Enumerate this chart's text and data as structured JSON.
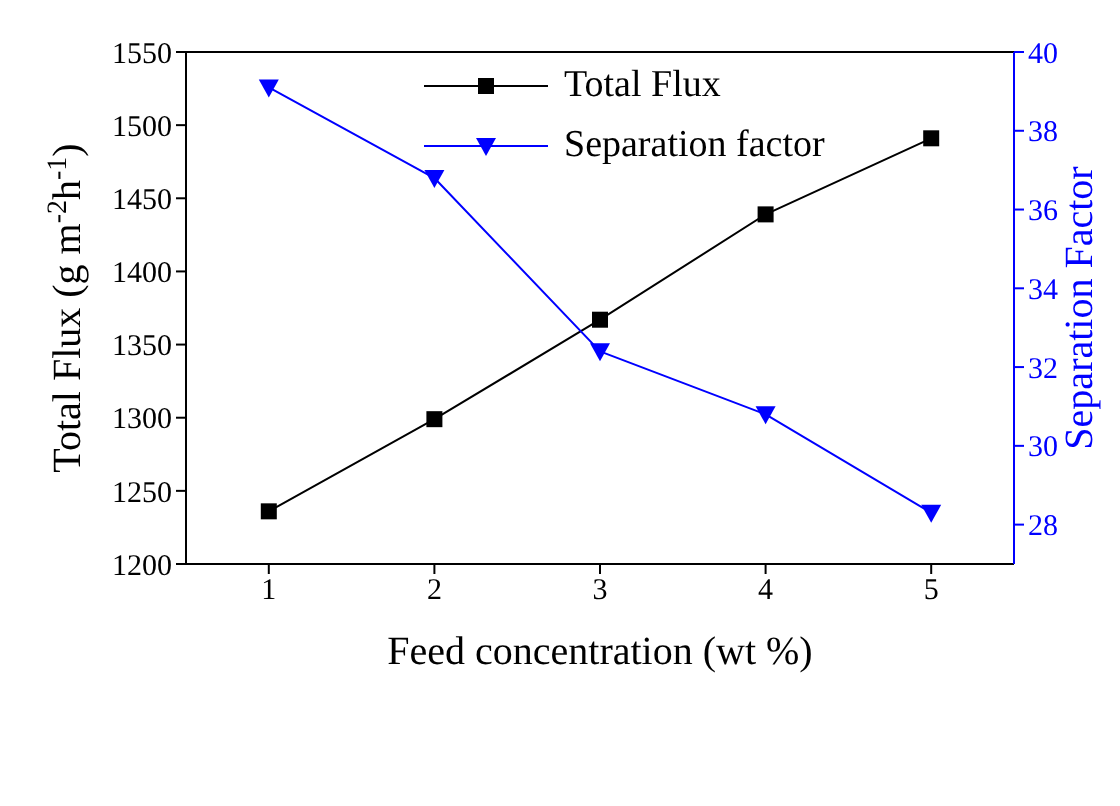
{
  "chart_data": {
    "type": "line",
    "xlabel": "Feed concentration (wt %)",
    "ylabel": "Total Flux (g m$^{-2}$h$^{-1}$)",
    "y2label": "Separation Factor",
    "x": [
      1,
      2,
      3,
      4,
      5
    ],
    "xlim": [
      0.5,
      5.5
    ],
    "xticks": [
      1,
      2,
      3,
      4,
      5
    ],
    "ylim": [
      1200,
      1550
    ],
    "yticks": [
      1200,
      1250,
      1300,
      1350,
      1400,
      1450,
      1500,
      1550
    ],
    "y2lim": [
      27,
      40
    ],
    "y2ticks": [
      28,
      30,
      32,
      34,
      36,
      38,
      40
    ],
    "legend": "top",
    "grid": false,
    "line_style": "solid",
    "series": [
      {
        "name": "Total Flux",
        "color": "#000000",
        "marker": "square",
        "values": [
          1236,
          1299,
          1367,
          1439,
          1491
        ]
      },
      {
        "name": "Separation factor",
        "color": "#0000ff",
        "marker": "triangle-down",
        "axis": "y2",
        "values": [
          39.1,
          36.8,
          32.4,
          30.8,
          28.3
        ]
      }
    ]
  }
}
